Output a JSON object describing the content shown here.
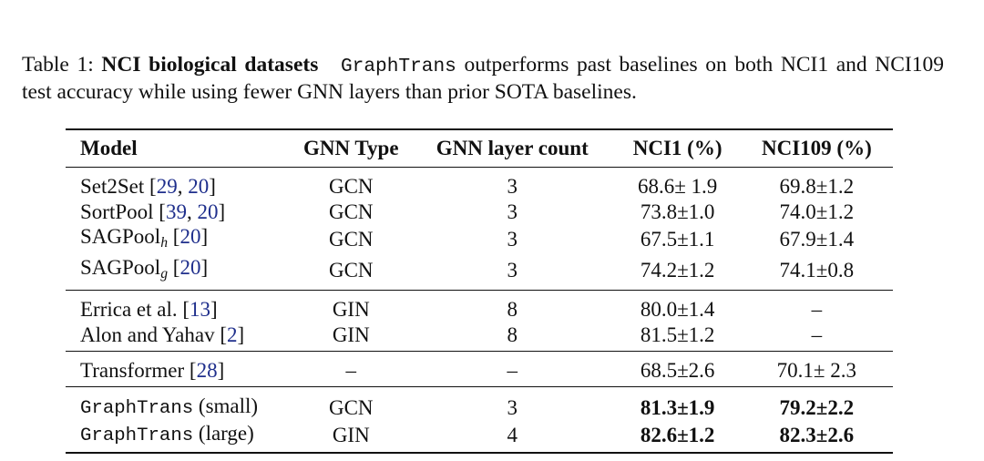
{
  "caption": {
    "label": "Table 1:",
    "title": "NCI biological datasets",
    "model_name": "GraphTrans",
    "text": "outperforms past baselines on both NCI1 and NCI109 test accuracy while using fewer GNN layers than prior SOTA baselines."
  },
  "table": {
    "headers": [
      "Model",
      "GNN Type",
      "GNN layer count",
      "NCI1 (%)",
      "NCI109 (%)"
    ],
    "groups": [
      {
        "rows": [
          {
            "model": "Set2Set",
            "model_sub": "",
            "model_mono": false,
            "model_suffix": "",
            "cites": [
              "29",
              "20"
            ],
            "gnn_type": "GCN",
            "layers": "3",
            "nci1": "68.6± 1.9",
            "nci109": "69.8±1.2",
            "bold": false
          },
          {
            "model": "SortPool",
            "model_sub": "",
            "model_mono": false,
            "model_suffix": "",
            "cites": [
              "39",
              "20"
            ],
            "gnn_type": "GCN",
            "layers": "3",
            "nci1": "73.8±1.0",
            "nci109": "74.0±1.2",
            "bold": false
          },
          {
            "model": "SAGPool",
            "model_sub": "h",
            "model_mono": false,
            "model_suffix": "",
            "cites": [
              "20"
            ],
            "gnn_type": "GCN",
            "layers": "3",
            "nci1": "67.5±1.1",
            "nci109": "67.9±1.4",
            "bold": false
          },
          {
            "model": "SAGPool",
            "model_sub": "g",
            "model_mono": false,
            "model_suffix": "",
            "cites": [
              "20"
            ],
            "gnn_type": "GCN",
            "layers": "3",
            "nci1": "74.2±1.2",
            "nci109": "74.1±0.8",
            "bold": false
          }
        ]
      },
      {
        "rows": [
          {
            "model": "Errica et al.",
            "cites": [
              "13"
            ],
            "gnn_type": "GIN",
            "layers": "8",
            "nci1": "80.0±1.4",
            "nci109": "–",
            "bold": false
          },
          {
            "model": "Alon and Yahav",
            "cites": [
              "2"
            ],
            "gnn_type": "GIN",
            "layers": "8",
            "nci1": "81.5±1.2",
            "nci109": "–",
            "bold": false
          }
        ]
      },
      {
        "rows": [
          {
            "model": "Transformer",
            "cites": [
              "28"
            ],
            "gnn_type": "–",
            "layers": "–",
            "nci1": "68.5±2.6",
            "nci109": "70.1± 2.3",
            "bold": false
          }
        ]
      },
      {
        "rows": [
          {
            "model": "GraphTrans",
            "model_suffix": "(small)",
            "cites": [],
            "gnn_type": "GCN",
            "layers": "3",
            "nci1": "81.3±1.9",
            "nci109": "79.2±2.2",
            "bold": true
          },
          {
            "model": "GraphTrans",
            "model_suffix": "(large)",
            "cites": [],
            "gnn_type": "GIN",
            "layers": "4",
            "nci1": "82.6±1.2",
            "nci109": "82.3±2.6",
            "bold": true
          }
        ]
      }
    ],
    "colors": {
      "citation": "#1f2f8c",
      "text": "#111111"
    }
  }
}
